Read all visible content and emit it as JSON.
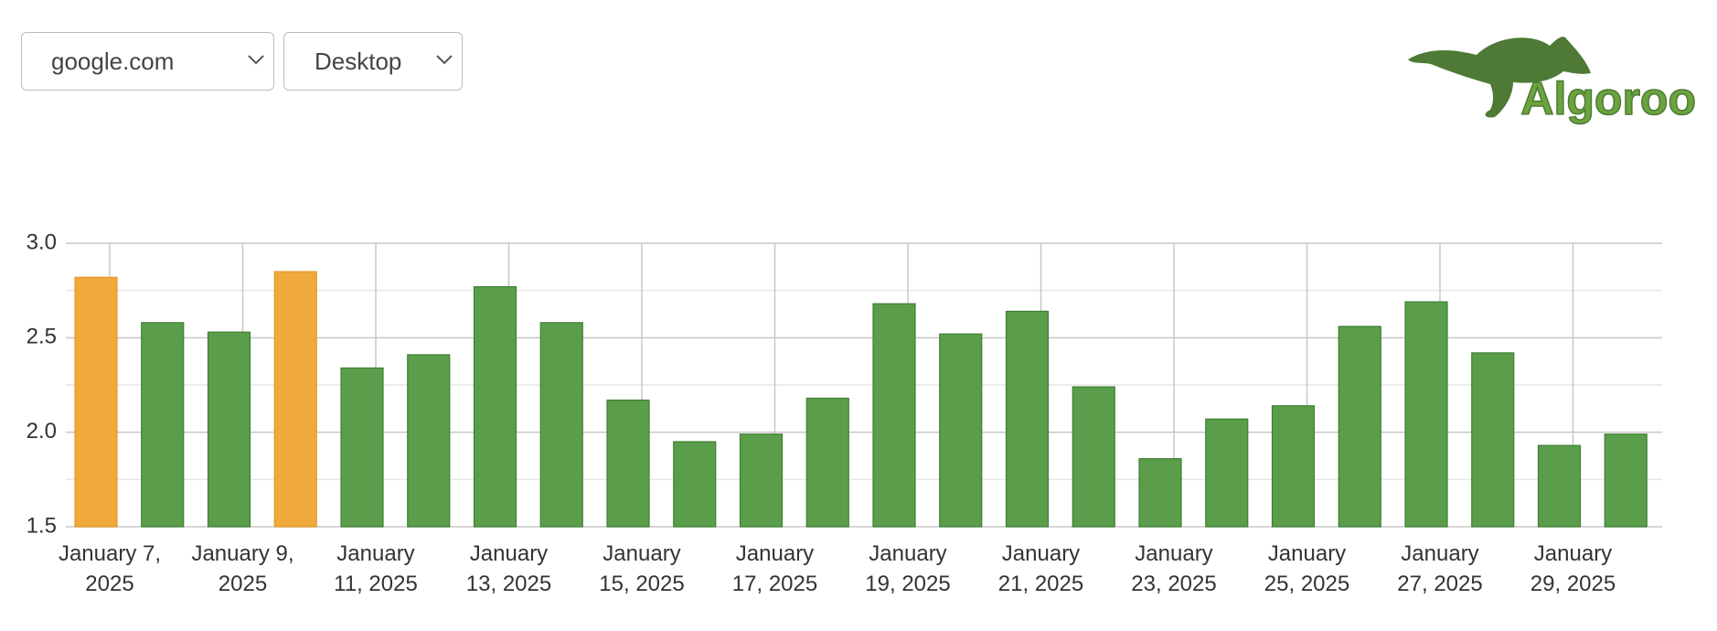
{
  "controls": {
    "domain": "google.com",
    "device": "Desktop"
  },
  "logo": "Algoroo",
  "chart_data": {
    "type": "bar",
    "categories": [
      "January 7, 2025",
      null,
      "January 9, 2025",
      null,
      "January 11, 2025",
      null,
      "January 13, 2025",
      null,
      "January 15, 2025",
      null,
      "January 17, 2025",
      null,
      "January 19, 2025",
      null,
      "January 21, 2025",
      null,
      "January 23, 2025",
      null,
      "January 25, 2025",
      null,
      "January 27, 2025",
      null,
      "January 29, 2025",
      null
    ],
    "values": [
      2.82,
      2.58,
      2.53,
      2.85,
      2.34,
      2.41,
      2.77,
      2.58,
      2.17,
      1.95,
      1.99,
      2.18,
      2.68,
      2.52,
      2.64,
      2.24,
      1.86,
      2.07,
      2.14,
      2.56,
      2.69,
      2.42,
      1.93,
      1.99
    ],
    "colors": [
      "#f0a93b",
      "#5a9e4b",
      "#5a9e4b",
      "#f0a93b",
      "#5a9e4b",
      "#5a9e4b",
      "#5a9e4b",
      "#5a9e4b",
      "#5a9e4b",
      "#5a9e4b",
      "#5a9e4b",
      "#5a9e4b",
      "#5a9e4b",
      "#5a9e4b",
      "#5a9e4b",
      "#5a9e4b",
      "#5a9e4b",
      "#5a9e4b",
      "#5a9e4b",
      "#5a9e4b",
      "#5a9e4b",
      "#5a9e4b",
      "#5a9e4b",
      "#5a9e4b"
    ],
    "ylim": [
      1.5,
      3.0
    ],
    "yticks": [
      {
        "value": 1.5,
        "label": "1.5"
      },
      {
        "value": 2.0,
        "label": "2.0"
      },
      {
        "value": 2.5,
        "label": "2.5"
      },
      {
        "value": 3.0,
        "label": "3.0"
      }
    ],
    "minor_yticks": [
      1.75,
      2.25,
      2.75
    ],
    "grid": true
  }
}
